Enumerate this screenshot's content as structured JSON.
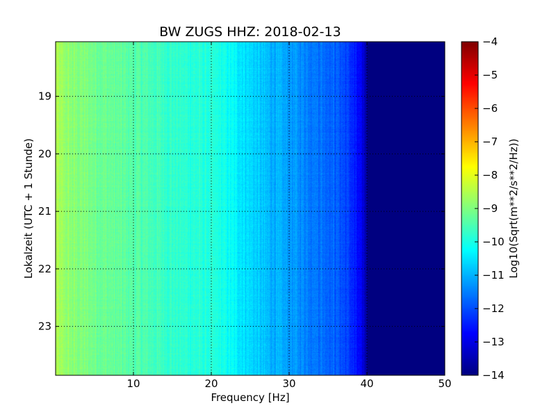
{
  "chart_data": {
    "type": "heatmap",
    "title": "BW ZUGS HHZ: 2018-02-13",
    "xlabel": "Frequency [Hz]",
    "ylabel": "Lokalzeit (UTC + 1 Stunde)",
    "colorbar_label": "Log10(Sqrt(m**2/s**2/Hz))",
    "colormap": "jet",
    "grid": true,
    "xlim": [
      0,
      50
    ],
    "ylim": [
      18.05,
      23.85
    ],
    "y_inverted": true,
    "xticks": [
      10,
      20,
      30,
      40,
      50
    ],
    "xtick_labels": [
      "10",
      "20",
      "30",
      "40",
      "50"
    ],
    "yticks": [
      19,
      20,
      21,
      22,
      23
    ],
    "ytick_labels": [
      "19",
      "20",
      "21",
      "22",
      "23"
    ],
    "clim": [
      -14,
      -4
    ],
    "cticks": [
      -14,
      -13,
      -12,
      -11,
      -10,
      -9,
      -8,
      -7,
      -6,
      -5,
      -4
    ],
    "ctick_labels": [
      "−14",
      "−13",
      "−12",
      "−11",
      "−10",
      "−9",
      "−8",
      "−7",
      "−6",
      "−5",
      "−4"
    ],
    "mean_spectrum": {
      "frequency_hz": [
        0,
        0.5,
        2,
        5,
        8,
        10,
        13,
        16,
        19,
        21,
        23,
        25,
        27,
        29,
        31,
        33,
        35,
        36,
        37,
        38,
        39,
        39.6,
        40,
        40.5,
        42,
        50
      ],
      "log10_value": [
        -8.5,
        -8.7,
        -8.9,
        -9.1,
        -9.3,
        -9.4,
        -9.6,
        -9.8,
        -9.9,
        -10.0,
        -10.3,
        -10.6,
        -10.9,
        -11.1,
        -11.3,
        -11.5,
        -11.7,
        -11.8,
        -12.0,
        -12.3,
        -12.8,
        -13.2,
        -13.7,
        -14.0,
        -14.0,
        -14.0
      ]
    }
  }
}
